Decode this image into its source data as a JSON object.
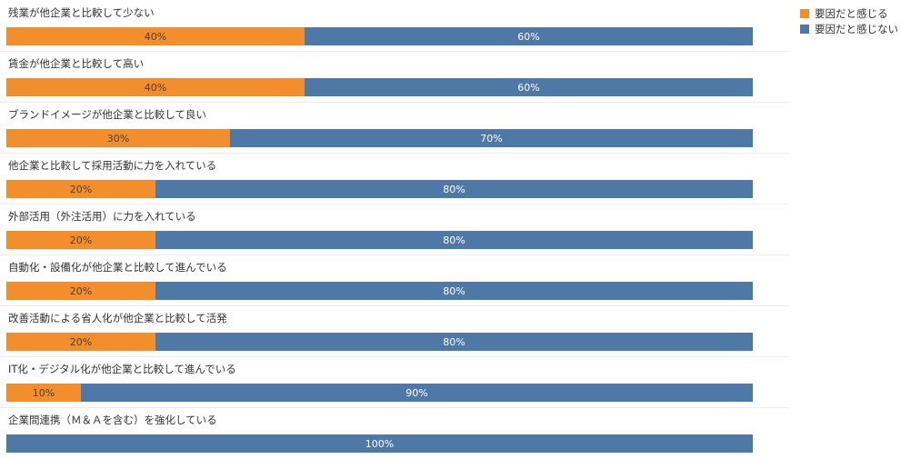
{
  "colors": {
    "factor": "#f28e2b",
    "not_factor": "#4e79a7"
  },
  "legend": [
    {
      "label": "要因だと感じる",
      "color": "#f28e2b"
    },
    {
      "label": "要因だと感じない",
      "color": "#4e79a7"
    }
  ],
  "chart_data": {
    "type": "bar",
    "orientation": "horizontal",
    "stacked": true,
    "percent": true,
    "categories": [
      "残業が他企業と比較して少ない",
      "賃金が他企業と比較して高い",
      "ブランドイメージが他企業と比較して良い",
      "他企業と比較して採用活動に力を入れている",
      "外部活用（外注活用）に力を入れている",
      "自動化・設備化が他企業と比較して進んでいる",
      "改善活動による省人化が他企業と比較して活発",
      "IT化・デジタル化が他企業と比較して進んでいる",
      "企業間連携（Ｍ＆Ａを含む）を強化している"
    ],
    "series": [
      {
        "name": "要因だと感じる",
        "color": "#f28e2b",
        "values": [
          40,
          40,
          30,
          20,
          20,
          20,
          20,
          10,
          0
        ],
        "labels": [
          "40%",
          "40%",
          "30%",
          "20%",
          "20%",
          "20%",
          "20%",
          "10%",
          ""
        ]
      },
      {
        "name": "要因だと感じない",
        "color": "#4e79a7",
        "values": [
          60,
          60,
          70,
          80,
          80,
          80,
          80,
          90,
          100
        ],
        "labels": [
          "60%",
          "60%",
          "70%",
          "80%",
          "80%",
          "80%",
          "80%",
          "90%",
          "100%"
        ]
      }
    ],
    "xlim": [
      0,
      100
    ],
    "legend_position": "top-right"
  }
}
